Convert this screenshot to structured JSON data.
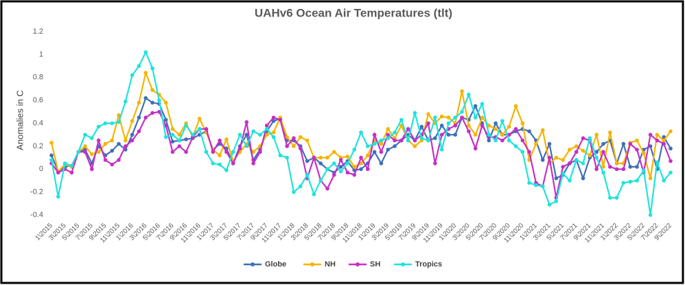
{
  "chart_data": {
    "type": "line",
    "title": "UAHv6 Ocean Air Temperatures (tlt)",
    "y_label": "Anomalies in C",
    "categories": [
      "1\\2015",
      null,
      "3\\2015",
      null,
      "5\\2015",
      null,
      "7\\2015",
      null,
      "9\\2015",
      null,
      "11\\2015",
      null,
      "1\\2016",
      null,
      "3\\2016",
      null,
      "5\\2016",
      null,
      "7\\2016",
      null,
      "9\\2016",
      null,
      "11\\2016",
      null,
      "1\\2017",
      null,
      "3\\2017",
      null,
      "5\\2017",
      null,
      "7\\2017",
      null,
      "9\\2017",
      null,
      "11\\2017",
      null,
      "1\\2018",
      null,
      "3\\2018",
      null,
      "5\\2018",
      null,
      "7\\2018",
      null,
      "9\\2018",
      null,
      "11\\2018",
      null,
      "1\\2019",
      null,
      "3\\2019",
      null,
      "5\\2019",
      null,
      "7\\2019",
      null,
      "9\\2019",
      null,
      "11\\2019",
      null,
      "1\\2020",
      null,
      "3\\2020",
      null,
      "5\\2020",
      null,
      "7\\2020",
      null,
      "9\\2020",
      null,
      "11\\2020",
      null,
      "1\\2021",
      null,
      "3\\2021",
      null,
      "5\\2021",
      null,
      "7\\2021",
      null,
      "9\\2021",
      null,
      "11\\2021",
      null,
      "1\\2022",
      null,
      "3\\2022",
      null,
      "5\\2022",
      null,
      "7\\2022",
      null,
      "9\\2022"
    ],
    "series": [
      {
        "name": "Globe",
        "color": "#3f6fb6",
        "values": [
          0.12,
          -0.02,
          0.02,
          0.03,
          0.15,
          0.17,
          0.05,
          0.2,
          0.12,
          0.16,
          0.22,
          0.17,
          0.3,
          0.45,
          0.62,
          0.58,
          0.57,
          0.43,
          0.24,
          0.25,
          0.26,
          0.27,
          0.3,
          0.33,
          0.17,
          0.22,
          0.18,
          0.05,
          0.2,
          0.3,
          0.08,
          0.17,
          0.33,
          0.42,
          0.44,
          0.25,
          0.25,
          0.2,
          0.07,
          0.1,
          0.05,
          0.0,
          -0.03,
          0.02,
          0.07,
          -0.01,
          0.0,
          0.05,
          0.15,
          0.05,
          0.17,
          0.2,
          0.25,
          0.3,
          0.25,
          0.37,
          0.25,
          0.27,
          0.38,
          0.3,
          0.3,
          0.45,
          0.43,
          0.55,
          0.4,
          0.25,
          0.4,
          0.3,
          0.3,
          0.33,
          0.35,
          0.33,
          0.25,
          0.08,
          0.22,
          -0.08,
          -0.05,
          0.05,
          0.08,
          -0.08,
          0.1,
          0.15,
          0.22,
          0.25,
          0.05,
          0.22,
          0.02,
          0.02,
          0.17,
          0.2,
          0.0,
          0.28,
          0.18
        ]
      },
      {
        "name": "NH",
        "color": "#f5b400",
        "values": [
          0.23,
          -0.02,
          0.04,
          0.02,
          0.15,
          0.2,
          0.13,
          0.15,
          0.22,
          0.25,
          0.47,
          0.25,
          0.42,
          0.58,
          0.84,
          0.69,
          0.65,
          0.58,
          0.35,
          0.3,
          0.4,
          0.28,
          0.44,
          0.32,
          0.17,
          0.12,
          0.26,
          0.07,
          0.15,
          0.22,
          0.15,
          0.2,
          0.3,
          0.32,
          0.45,
          0.28,
          0.2,
          0.28,
          0.25,
          0.1,
          0.1,
          0.1,
          0.15,
          0.1,
          0.11,
          0.02,
          0.05,
          0.12,
          0.25,
          0.22,
          0.35,
          0.27,
          0.38,
          0.25,
          0.2,
          0.25,
          0.48,
          0.4,
          0.46,
          0.45,
          0.4,
          0.68,
          0.38,
          0.3,
          0.45,
          0.38,
          0.35,
          0.3,
          0.37,
          0.55,
          0.4,
          0.08,
          0.22,
          0.34,
          0.05,
          0.1,
          0.08,
          0.17,
          0.2,
          0.16,
          0.12,
          0.3,
          0.02,
          0.32,
          0.05,
          0.05,
          0.23,
          0.25,
          0.14,
          -0.08,
          0.3,
          0.25,
          0.33
        ]
      },
      {
        "name": "SH",
        "color": "#c62ec6",
        "values": [
          0.05,
          -0.03,
          0.0,
          -0.03,
          0.15,
          0.15,
          0.0,
          0.25,
          0.08,
          0.04,
          0.08,
          0.2,
          0.25,
          0.33,
          0.45,
          0.49,
          0.5,
          0.38,
          0.15,
          0.2,
          0.15,
          0.28,
          0.35,
          0.35,
          0.15,
          0.25,
          0.15,
          0.05,
          0.18,
          0.41,
          0.05,
          0.15,
          0.38,
          0.45,
          0.43,
          0.2,
          0.27,
          0.18,
          -0.08,
          0.1,
          -0.1,
          -0.17,
          -0.05,
          0.08,
          -0.03,
          -0.05,
          0.1,
          0.0,
          0.3,
          0.15,
          0.3,
          0.25,
          0.25,
          0.35,
          0.25,
          0.3,
          0.4,
          0.05,
          0.3,
          0.35,
          0.38,
          0.45,
          0.33,
          0.18,
          0.38,
          0.28,
          0.28,
          0.25,
          0.3,
          0.35,
          0.25,
          0.15,
          -0.12,
          -0.15,
          0.1,
          -0.25,
          0.02,
          0.05,
          0.15,
          0.27,
          0.25,
          0.0,
          0.15,
          0.02,
          0.0,
          0.0,
          0.22,
          0.17,
          -0.03,
          0.3,
          0.25,
          0.22,
          0.07
        ]
      },
      {
        "name": "Tropics",
        "color": "#1fe3dc",
        "values": [
          0.08,
          -0.24,
          0.05,
          0.03,
          0.15,
          0.3,
          0.27,
          0.37,
          0.4,
          0.4,
          0.41,
          0.59,
          0.82,
          0.9,
          1.02,
          0.88,
          0.6,
          0.28,
          0.3,
          0.25,
          0.38,
          0.3,
          0.35,
          0.15,
          0.05,
          0.04,
          -0.01,
          0.15,
          0.3,
          0.2,
          0.33,
          0.3,
          0.35,
          0.28,
          0.12,
          0.1,
          -0.2,
          -0.15,
          -0.05,
          -0.22,
          -0.1,
          0.0,
          0.05,
          -0.02,
          0.05,
          0.17,
          0.32,
          0.2,
          0.22,
          0.25,
          0.27,
          0.32,
          0.43,
          0.25,
          0.49,
          0.27,
          0.25,
          0.45,
          0.17,
          0.4,
          0.45,
          0.5,
          0.65,
          0.45,
          0.57,
          0.3,
          0.25,
          0.42,
          0.25,
          0.2,
          0.15,
          -0.12,
          -0.14,
          -0.15,
          -0.31,
          -0.28,
          -0.04,
          -0.1,
          0.08,
          0.05,
          0.27,
          0.1,
          -0.03,
          -0.25,
          -0.25,
          -0.12,
          -0.11,
          -0.1,
          -0.01,
          -0.4,
          0.06,
          -0.1,
          -0.03
        ]
      }
    ],
    "ylim": [
      -0.4,
      1.2
    ],
    "yticks": [
      -0.4,
      -0.2,
      0,
      0.2,
      0.4,
      0.6,
      0.8,
      1,
      1.2
    ],
    "grid": false,
    "legend": "bottom"
  }
}
